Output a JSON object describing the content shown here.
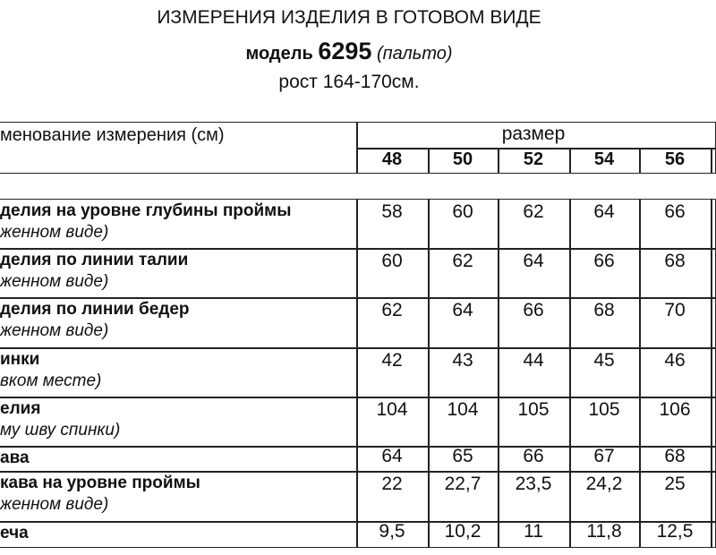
{
  "title": {
    "line1": "ИЗМЕРЕНИЯ ИЗДЕЛИЯ В ГОТОВОМ ВИДЕ",
    "model_label": "модель",
    "model_number": "6295",
    "model_type": "(пальто)",
    "height": "рост 164-170см."
  },
  "table": {
    "name_header": "менование измерения (см)",
    "size_header": "размер",
    "sizes": [
      "48",
      "50",
      "52",
      "54",
      "56"
    ],
    "rows": [
      {
        "label": "делия на уровне глубины проймы",
        "note": "женном виде)",
        "values": [
          "58",
          "60",
          "62",
          "64",
          "66"
        ]
      },
      {
        "label": "делия по линии талии",
        "note": "женном виде)",
        "values": [
          "60",
          "62",
          "64",
          "66",
          "68"
        ]
      },
      {
        "label": "делия по линии бедер",
        "note": "женном виде)",
        "values": [
          "62",
          "64",
          "66",
          "68",
          "70"
        ]
      },
      {
        "label": "инки",
        "note": "вком месте)",
        "values": [
          "42",
          "43",
          "44",
          "45",
          "46"
        ]
      },
      {
        "label": "елия",
        "note": "му шву спинки)",
        "values": [
          "104",
          "104",
          "105",
          "105",
          "106"
        ]
      },
      {
        "label": "ава",
        "note": "",
        "values": [
          "64",
          "65",
          "66",
          "67",
          "68"
        ]
      },
      {
        "label": "кава на уровне проймы",
        "note": "женном виде)",
        "values": [
          "22",
          "22,7",
          "23,5",
          "24,2",
          "25"
        ]
      },
      {
        "label": "еча",
        "note": "",
        "values": [
          "9,5",
          "10,2",
          "11",
          "11,8",
          "12,5"
        ]
      }
    ]
  }
}
